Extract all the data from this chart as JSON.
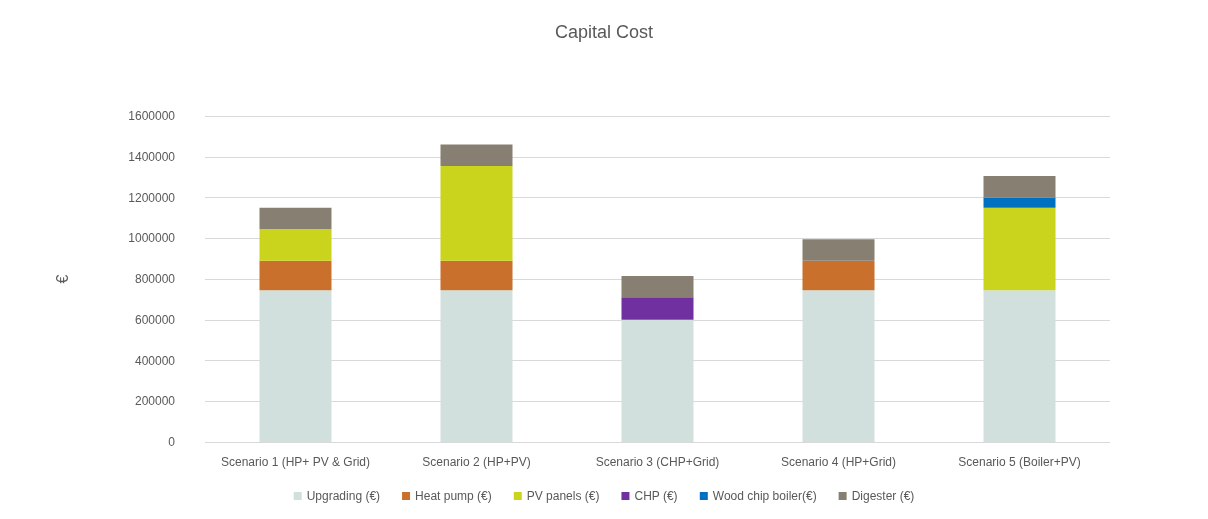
{
  "chart_data": {
    "type": "bar",
    "title": "Capital Cost",
    "ylabel": "€",
    "categories": [
      "Scenario 1 (HP+ PV & Grid)",
      "Scenario 2 (HP+PV)",
      "Scenario 3 (CHP+Grid)",
      "Scenario 4 (HP+Grid)",
      "Scenario 5 (Boiler+PV)"
    ],
    "series": [
      {
        "name": "Upgrading (€)",
        "color": "#d1e0dd",
        "values": [
          745000,
          745000,
          600000,
          745000,
          745000
        ]
      },
      {
        "name": "Heat pump (€)",
        "color": "#c8702c",
        "values": [
          145000,
          145000,
          null,
          145000,
          null
        ]
      },
      {
        "name": "PV panels (€)",
        "color": "#cbd41c",
        "values": [
          155000,
          465000,
          null,
          null,
          405000
        ]
      },
      {
        "name": "CHP (€)",
        "color": "#7030a0",
        "values": [
          null,
          null,
          110000,
          null,
          null
        ]
      },
      {
        "name": "Wood chip boiler(€)",
        "color": "#0070c0",
        "values": [
          null,
          null,
          null,
          null,
          50000
        ]
      },
      {
        "name": "Digester (€)",
        "color": "#877f72",
        "values": [
          105000,
          105000,
          105000,
          105000,
          105000
        ]
      }
    ],
    "stacked": true,
    "ylim": [
      0,
      1600000
    ],
    "yticks": [
      0,
      200000,
      400000,
      600000,
      800000,
      1000000,
      1200000,
      1400000,
      1600000
    ],
    "grid": "y",
    "legend": "bottom"
  }
}
